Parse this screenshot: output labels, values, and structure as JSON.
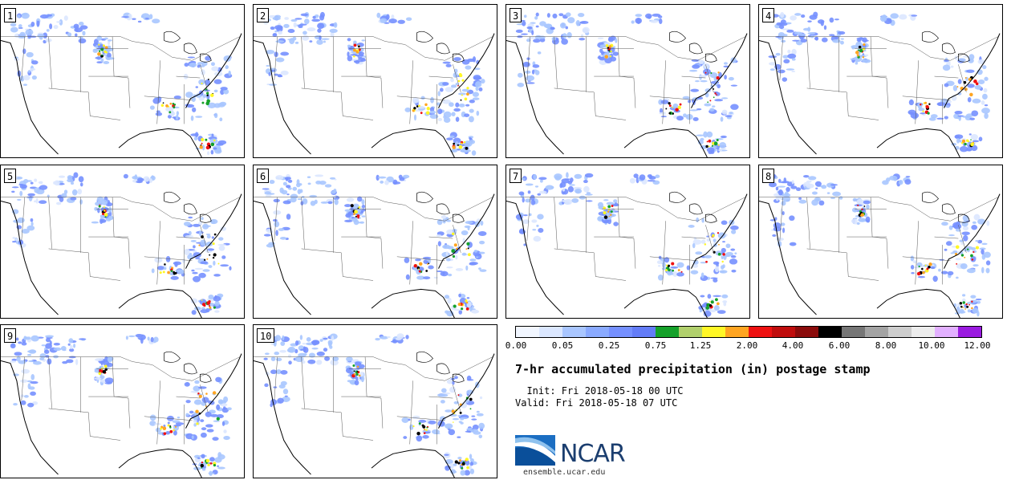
{
  "panels": [
    {
      "label": "1"
    },
    {
      "label": "2"
    },
    {
      "label": "3"
    },
    {
      "label": "4"
    },
    {
      "label": "5"
    },
    {
      "label": "6"
    },
    {
      "label": "7"
    },
    {
      "label": "8"
    },
    {
      "label": "9"
    },
    {
      "label": "10"
    }
  ],
  "colorbar": {
    "colors": [
      "#f1f6ff",
      "#dbe7ff",
      "#a9c6ff",
      "#8aaaff",
      "#7590ff",
      "#637cf7",
      "#15a12a",
      "#b1d06c",
      "#fff726",
      "#ffa521",
      "#ee1111",
      "#c00d0d",
      "#8b0b0b",
      "#000000",
      "#767676",
      "#a3a3a3",
      "#cdcdcd",
      "#ececec",
      "#e2b0ff",
      "#9a1be0"
    ],
    "tick_labels": [
      "0.00",
      "0.05",
      "0.25",
      "0.75",
      "1.25",
      "2.00",
      "4.00",
      "6.00",
      "8.00",
      "10.00",
      "12.00"
    ]
  },
  "title": "7-hr accumulated precipitation (in) postage stamp",
  "init": "  Init: Fri 2018-05-18 00 UTC",
  "valid": "Valid: Fri 2018-05-18 07 UTC",
  "logo": {
    "name": "NCAR",
    "url": "ensemble.ucar.edu"
  }
}
